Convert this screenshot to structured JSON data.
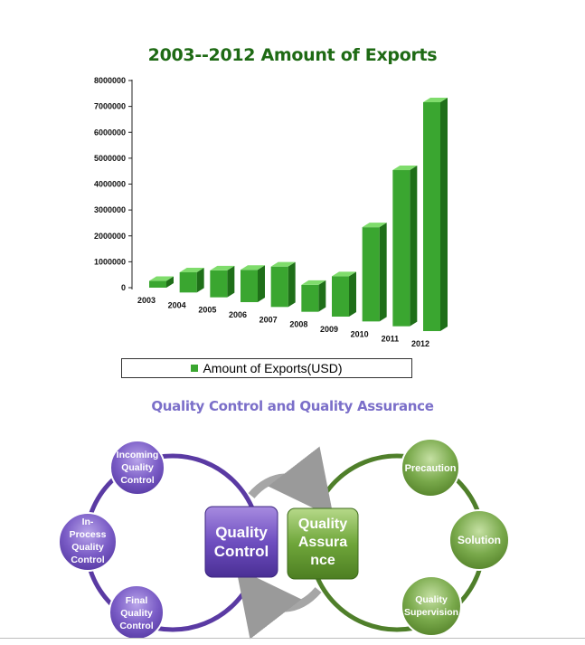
{
  "chart_data": {
    "type": "bar",
    "title": "2003--2012 Amount of Exports",
    "categories": [
      "2003",
      "2004",
      "2005",
      "2006",
      "2007",
      "2008",
      "2009",
      "2010",
      "2011",
      "2012"
    ],
    "series": [
      {
        "name": "Amount of Exports(USD)",
        "values": [
          250000,
          750000,
          1000000,
          1200000,
          1500000,
          1000000,
          1500000,
          3500000,
          5800000,
          8500000
        ]
      }
    ],
    "yticks": [
      "8000000",
      "7000000",
      "6000000",
      "5000000",
      "4000000",
      "3000000",
      "2000000",
      "1000000",
      "0"
    ],
    "ylim": [
      0,
      8000000
    ],
    "legend": "bottom",
    "colors": {
      "bar_front": "#3aa630",
      "bar_side": "#1f6f19",
      "bar_top": "#7fdc6c"
    }
  },
  "diagram": {
    "title": "Quality Control and Quality Assurance",
    "center_left": [
      "Quality",
      "Control"
    ],
    "center_right": [
      "Quality",
      "Assura",
      "nce"
    ],
    "left_nodes": [
      {
        "lines": [
          "Incoming",
          "Quality",
          "Control"
        ]
      },
      {
        "lines": [
          "In-",
          "Process",
          "Quality",
          "Control"
        ]
      },
      {
        "lines": [
          "Final",
          "Quality",
          "Control"
        ]
      }
    ],
    "right_nodes": [
      {
        "lines": [
          "Precaution"
        ]
      },
      {
        "lines": [
          "Solution"
        ]
      },
      {
        "lines": [
          "Quality",
          "Supervision"
        ]
      }
    ],
    "colors": {
      "purple": "#6a4fb0",
      "green": "#5e8f2e",
      "arrow": "#9a9a9a"
    }
  }
}
